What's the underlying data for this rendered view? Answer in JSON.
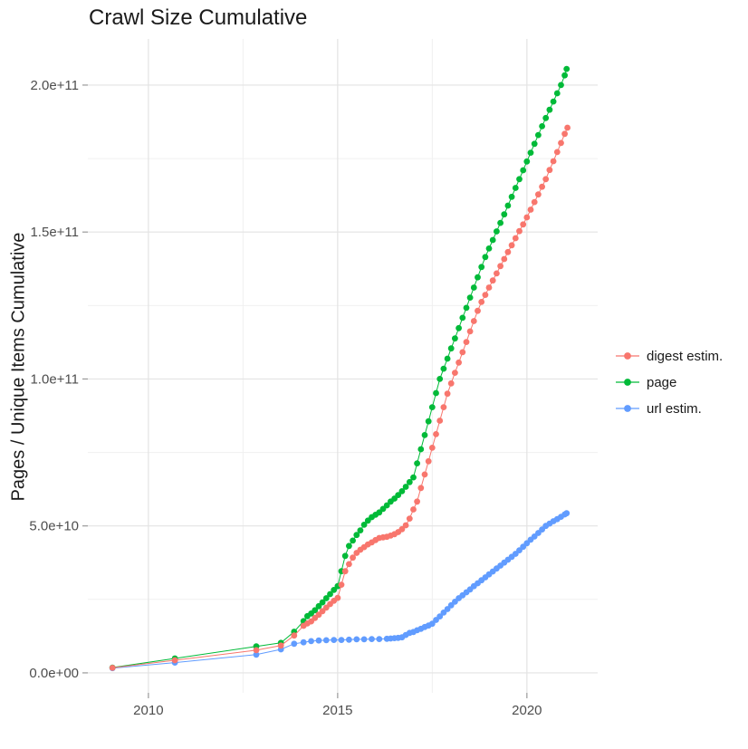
{
  "chart_data": {
    "type": "scatter",
    "title": "Crawl Size Cumulative",
    "xlabel": "",
    "ylabel": "Pages / Unique Items Cumulative",
    "grid": true,
    "legend_position": "right-center",
    "xlim": [
      2008.4,
      2021.87
    ],
    "ylim_billions": [
      -6.8,
      215.7
    ],
    "y_unit_multiplier": 1000000000,
    "x_ticks": {
      "values": [
        2010,
        2015,
        2020
      ],
      "labels": [
        "2010",
        "2015",
        "2020"
      ]
    },
    "y_ticks": {
      "values": [
        0,
        50,
        100,
        150,
        200
      ],
      "labels": [
        "0.0e+00",
        "5.0e+10",
        "1.0e+11",
        "1.5e+11",
        "2.0e+11"
      ]
    },
    "x_minor_gridlines": [
      2012.5,
      2017.5
    ],
    "y_minor_gridlines_billions": [
      25,
      75,
      125,
      175
    ],
    "colors": {
      "background": "#FFFFFF",
      "grid_major": "#E3E3E3",
      "grid_minor": "#F0F0F0",
      "tick_mark": "#999999",
      "axis_text": "#4D4D4D",
      "title_text": "#1A1A1A"
    },
    "series": [
      {
        "name": "digest estim.",
        "color": "#F8766D",
        "points_year_billions": [
          [
            2009.05,
            1.7
          ],
          [
            2010.7,
            4.3
          ],
          [
            2012.85,
            7.7
          ],
          [
            2013.5,
            9.3
          ],
          [
            2013.85,
            12.7
          ],
          [
            2014.1,
            16.0
          ],
          [
            2014.2,
            16.8
          ],
          [
            2014.3,
            17.5
          ],
          [
            2014.4,
            18.7
          ],
          [
            2014.5,
            19.8
          ],
          [
            2014.6,
            21.0
          ],
          [
            2014.7,
            22.2
          ],
          [
            2014.8,
            23.4
          ],
          [
            2014.9,
            24.5
          ],
          [
            2015.0,
            25.5
          ],
          [
            2015.1,
            30.0
          ],
          [
            2015.2,
            34.6
          ],
          [
            2015.3,
            37.0
          ],
          [
            2015.4,
            39.2
          ],
          [
            2015.5,
            40.8
          ],
          [
            2015.6,
            41.9
          ],
          [
            2015.7,
            42.8
          ],
          [
            2015.8,
            43.7
          ],
          [
            2015.9,
            44.4
          ],
          [
            2016.0,
            45.2
          ],
          [
            2016.1,
            45.9
          ],
          [
            2016.2,
            46.1
          ],
          [
            2016.3,
            46.3
          ],
          [
            2016.4,
            46.7
          ],
          [
            2016.5,
            47.2
          ],
          [
            2016.6,
            47.9
          ],
          [
            2016.7,
            48.9
          ],
          [
            2016.8,
            50.2
          ],
          [
            2016.9,
            52.5
          ],
          [
            2017.0,
            55.6
          ],
          [
            2017.1,
            58.3
          ],
          [
            2017.2,
            62.9
          ],
          [
            2017.3,
            67.5
          ],
          [
            2017.4,
            72.0
          ],
          [
            2017.5,
            76.6
          ],
          [
            2017.6,
            81.2
          ],
          [
            2017.7,
            85.8
          ],
          [
            2017.8,
            90.4
          ],
          [
            2017.9,
            95.0
          ],
          [
            2018.0,
            98.5
          ],
          [
            2018.1,
            102.1
          ],
          [
            2018.2,
            105.6
          ],
          [
            2018.3,
            109.1
          ],
          [
            2018.4,
            112.6
          ],
          [
            2018.5,
            116.2
          ],
          [
            2018.6,
            119.7
          ],
          [
            2018.7,
            123.2
          ],
          [
            2018.8,
            126.2
          ],
          [
            2018.9,
            128.6
          ],
          [
            2019.0,
            131.1
          ],
          [
            2019.1,
            133.5
          ],
          [
            2019.2,
            135.9
          ],
          [
            2019.3,
            138.4
          ],
          [
            2019.4,
            140.8
          ],
          [
            2019.5,
            143.2
          ],
          [
            2019.6,
            145.5
          ],
          [
            2019.7,
            147.9
          ],
          [
            2019.8,
            150.3
          ],
          [
            2019.9,
            152.6
          ],
          [
            2020.0,
            155.0
          ],
          [
            2020.1,
            157.6
          ],
          [
            2020.2,
            160.2
          ],
          [
            2020.3,
            162.8
          ],
          [
            2020.4,
            165.4
          ],
          [
            2020.5,
            168.0
          ],
          [
            2020.6,
            171.1
          ],
          [
            2020.7,
            174.1
          ],
          [
            2020.8,
            177.2
          ],
          [
            2020.9,
            180.3
          ],
          [
            2021.0,
            183.4
          ],
          [
            2021.07,
            185.5
          ]
        ]
      },
      {
        "name": "page",
        "color": "#00BA38",
        "points_year_billions": [
          [
            2009.05,
            1.8
          ],
          [
            2010.7,
            4.9
          ],
          [
            2012.85,
            9.0
          ],
          [
            2013.5,
            10.2
          ],
          [
            2013.85,
            14.0
          ],
          [
            2014.1,
            17.6
          ],
          [
            2014.2,
            19.3
          ],
          [
            2014.3,
            20.2
          ],
          [
            2014.4,
            21.3
          ],
          [
            2014.5,
            22.7
          ],
          [
            2014.6,
            24.0
          ],
          [
            2014.7,
            25.4
          ],
          [
            2014.8,
            26.8
          ],
          [
            2014.9,
            28.2
          ],
          [
            2015.0,
            29.5
          ],
          [
            2015.1,
            34.6
          ],
          [
            2015.2,
            39.8
          ],
          [
            2015.3,
            43.2
          ],
          [
            2015.4,
            45.0
          ],
          [
            2015.5,
            46.9
          ],
          [
            2015.6,
            48.5
          ],
          [
            2015.7,
            50.4
          ],
          [
            2015.8,
            51.8
          ],
          [
            2015.9,
            53.0
          ],
          [
            2016.0,
            53.8
          ],
          [
            2016.1,
            54.6
          ],
          [
            2016.2,
            55.8
          ],
          [
            2016.3,
            57.0
          ],
          [
            2016.4,
            58.3
          ],
          [
            2016.5,
            59.3
          ],
          [
            2016.6,
            60.5
          ],
          [
            2016.7,
            61.8
          ],
          [
            2016.8,
            63.3
          ],
          [
            2016.9,
            64.9
          ],
          [
            2017.0,
            66.5
          ],
          [
            2017.1,
            71.3
          ],
          [
            2017.2,
            76.1
          ],
          [
            2017.3,
            80.9
          ],
          [
            2017.4,
            85.6
          ],
          [
            2017.5,
            90.4
          ],
          [
            2017.6,
            95.2
          ],
          [
            2017.7,
            100.0
          ],
          [
            2017.8,
            103.5
          ],
          [
            2017.9,
            106.9
          ],
          [
            2018.0,
            110.4
          ],
          [
            2018.1,
            113.8
          ],
          [
            2018.2,
            117.3
          ],
          [
            2018.3,
            120.8
          ],
          [
            2018.4,
            124.2
          ],
          [
            2018.5,
            127.7
          ],
          [
            2018.6,
            131.1
          ],
          [
            2018.7,
            134.6
          ],
          [
            2018.8,
            138.1
          ],
          [
            2018.9,
            141.5
          ],
          [
            2019.0,
            144.4
          ],
          [
            2019.1,
            147.3
          ],
          [
            2019.2,
            150.2
          ],
          [
            2019.3,
            153.1
          ],
          [
            2019.4,
            156.0
          ],
          [
            2019.5,
            159.0
          ],
          [
            2019.6,
            162.0
          ],
          [
            2019.7,
            165.0
          ],
          [
            2019.8,
            168.0
          ],
          [
            2019.9,
            171.0
          ],
          [
            2020.0,
            174.0
          ],
          [
            2020.1,
            177.0
          ],
          [
            2020.2,
            180.0
          ],
          [
            2020.3,
            183.0
          ],
          [
            2020.4,
            186.0
          ],
          [
            2020.5,
            188.8
          ],
          [
            2020.6,
            191.6
          ],
          [
            2020.7,
            194.4
          ],
          [
            2020.8,
            197.2
          ],
          [
            2020.9,
            200.0
          ],
          [
            2021.0,
            203.3
          ],
          [
            2021.05,
            205.5
          ]
        ]
      },
      {
        "name": "url estim.",
        "color": "#619CFF",
        "points_year_billions": [
          [
            2009.05,
            1.6
          ],
          [
            2010.7,
            3.5
          ],
          [
            2012.85,
            6.2
          ],
          [
            2013.5,
            8.0
          ],
          [
            2013.85,
            9.9
          ],
          [
            2014.1,
            10.4
          ],
          [
            2014.3,
            10.8
          ],
          [
            2014.5,
            11.0
          ],
          [
            2014.7,
            11.1
          ],
          [
            2014.9,
            11.2
          ],
          [
            2015.1,
            11.2
          ],
          [
            2015.3,
            11.3
          ],
          [
            2015.5,
            11.4
          ],
          [
            2015.7,
            11.4
          ],
          [
            2015.9,
            11.5
          ],
          [
            2016.1,
            11.5
          ],
          [
            2016.3,
            11.6
          ],
          [
            2016.4,
            11.7
          ],
          [
            2016.5,
            11.8
          ],
          [
            2016.6,
            11.9
          ],
          [
            2016.7,
            12.1
          ],
          [
            2016.8,
            12.9
          ],
          [
            2016.9,
            13.6
          ],
          [
            2017.0,
            13.9
          ],
          [
            2017.1,
            14.5
          ],
          [
            2017.2,
            15.0
          ],
          [
            2017.3,
            15.6
          ],
          [
            2017.4,
            16.1
          ],
          [
            2017.5,
            16.7
          ],
          [
            2017.6,
            18.0
          ],
          [
            2017.7,
            19.2
          ],
          [
            2017.8,
            20.5
          ],
          [
            2017.9,
            21.7
          ],
          [
            2018.0,
            23.0
          ],
          [
            2018.1,
            24.2
          ],
          [
            2018.2,
            25.4
          ],
          [
            2018.3,
            26.4
          ],
          [
            2018.4,
            27.4
          ],
          [
            2018.5,
            28.4
          ],
          [
            2018.6,
            29.5
          ],
          [
            2018.7,
            30.5
          ],
          [
            2018.8,
            31.5
          ],
          [
            2018.9,
            32.5
          ],
          [
            2019.0,
            33.5
          ],
          [
            2019.1,
            34.5
          ],
          [
            2019.2,
            35.5
          ],
          [
            2019.3,
            36.5
          ],
          [
            2019.4,
            37.5
          ],
          [
            2019.5,
            38.5
          ],
          [
            2019.6,
            39.5
          ],
          [
            2019.7,
            40.5
          ],
          [
            2019.8,
            41.7
          ],
          [
            2019.9,
            42.9
          ],
          [
            2020.0,
            44.1
          ],
          [
            2020.1,
            45.3
          ],
          [
            2020.2,
            46.4
          ],
          [
            2020.3,
            47.6
          ],
          [
            2020.4,
            48.8
          ],
          [
            2020.5,
            50.0
          ],
          [
            2020.6,
            50.8
          ],
          [
            2020.7,
            51.6
          ],
          [
            2020.8,
            52.3
          ],
          [
            2020.9,
            53.1
          ],
          [
            2021.0,
            53.9
          ],
          [
            2021.05,
            54.3
          ]
        ]
      }
    ]
  },
  "legend": {
    "items": [
      {
        "label": "digest estim.",
        "color": "#F8766D"
      },
      {
        "label": "page",
        "color": "#00BA38"
      },
      {
        "label": "url estim.",
        "color": "#619CFF"
      }
    ]
  }
}
